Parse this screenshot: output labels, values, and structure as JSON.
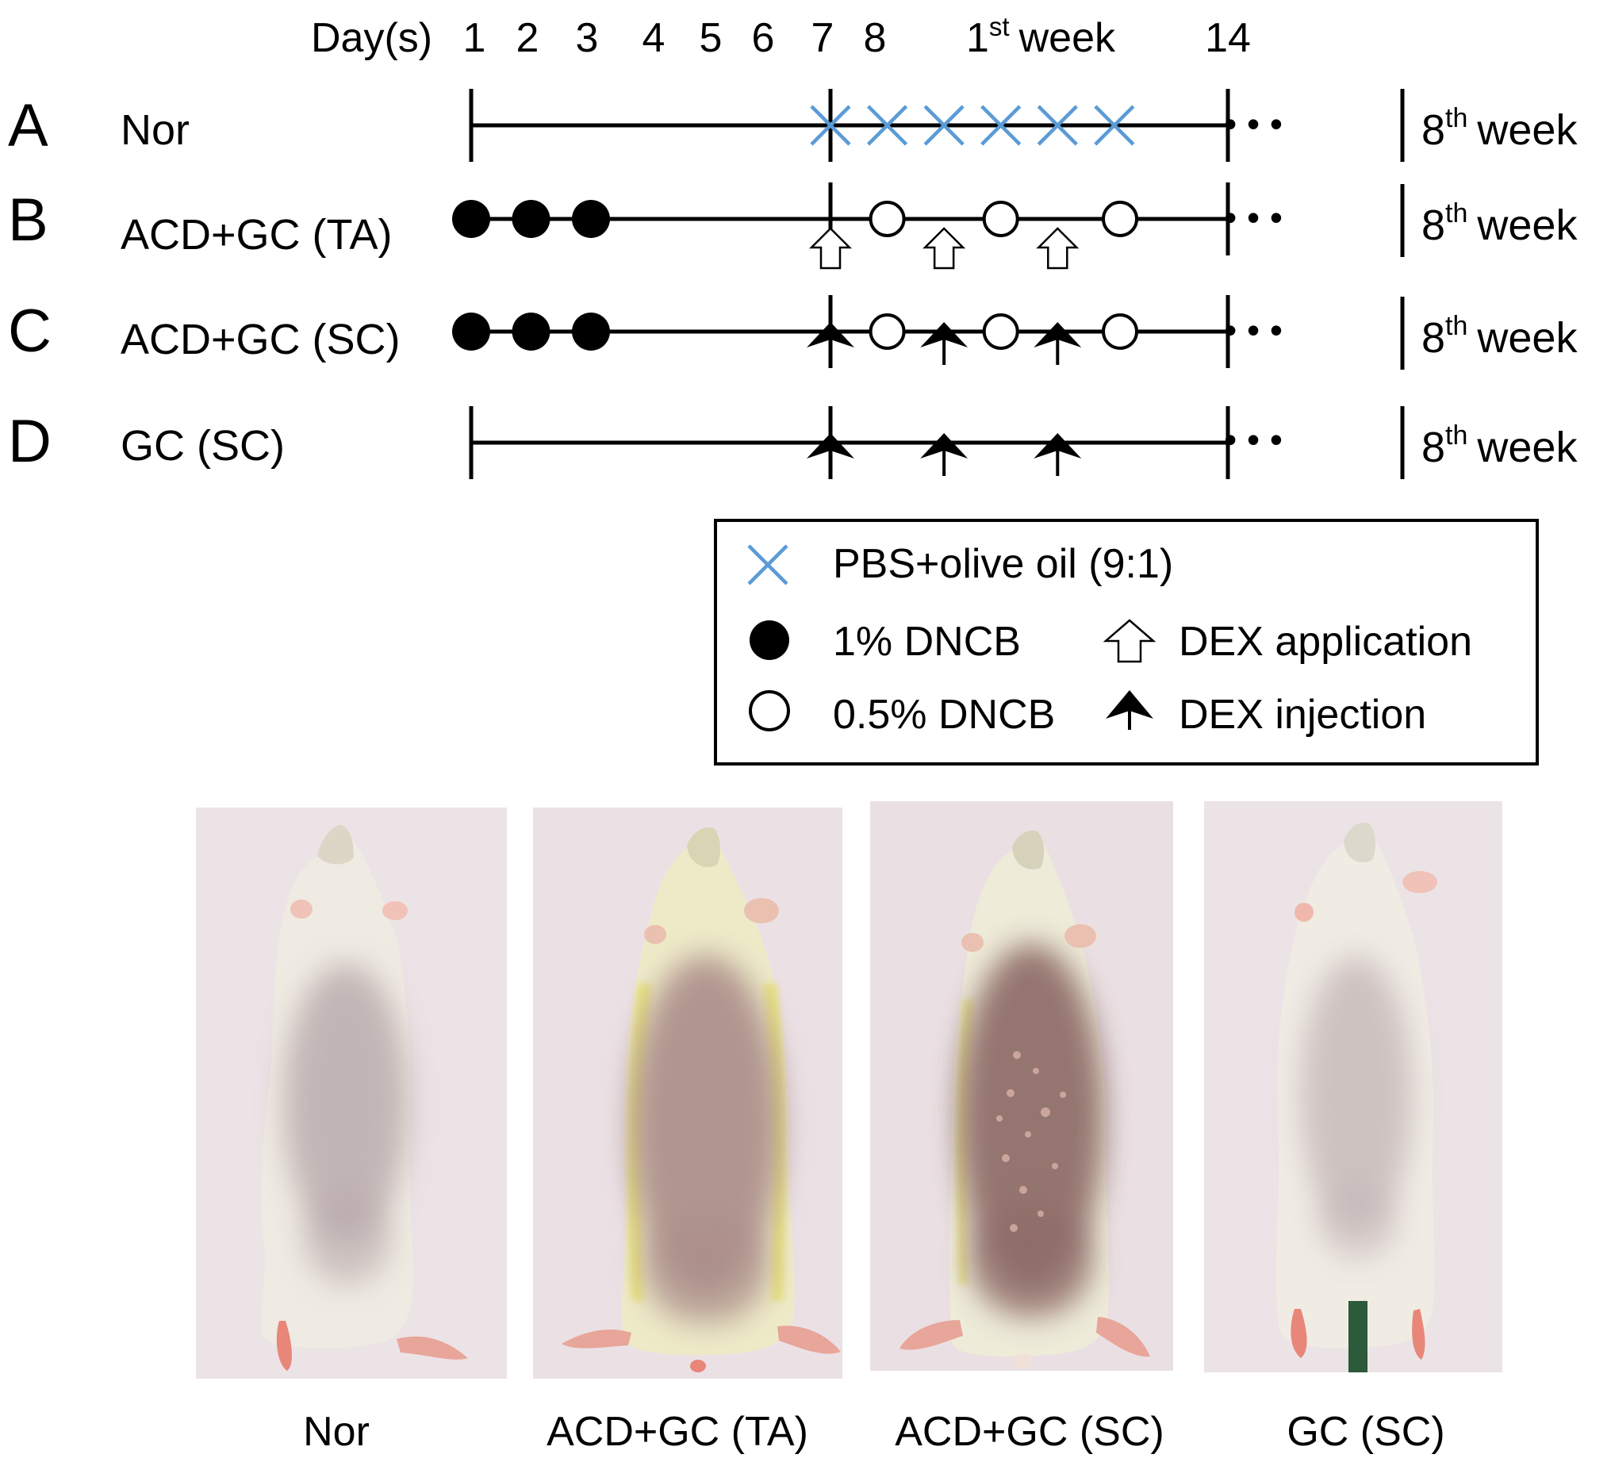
{
  "timeline": {
    "header_label": "Day(s)",
    "day_ticks": [
      {
        "label": "1",
        "day": 1
      },
      {
        "label": "2",
        "day": 2
      },
      {
        "label": "3",
        "day": 3
      },
      {
        "label": "4",
        "day": 4
      },
      {
        "label": "5",
        "day": 5
      },
      {
        "label": "6",
        "day": 6
      },
      {
        "label": "7",
        "day": 7
      },
      {
        "label": "8",
        "day": 8
      },
      {
        "label": "14",
        "day": 14
      }
    ],
    "week1_label": {
      "number": "1",
      "suffix": "st",
      "word": "week"
    },
    "ellipsis": "•  •  •",
    "end_label": {
      "number": "8",
      "suffix": "th",
      "word": "week"
    },
    "rows": [
      {
        "letter": "A",
        "name": "Nor",
        "markers": [
          {
            "type": "pbs-cross",
            "day": 7
          },
          {
            "type": "pbs-cross",
            "day": 8
          },
          {
            "type": "pbs-cross",
            "day": 9
          },
          {
            "type": "pbs-cross",
            "day": 10
          },
          {
            "type": "pbs-cross",
            "day": 11
          },
          {
            "type": "pbs-cross",
            "day": 12
          }
        ]
      },
      {
        "letter": "B",
        "name": "ACD+GC (TA)",
        "markers": [
          {
            "type": "filled-circle",
            "day": 1
          },
          {
            "type": "filled-circle",
            "day": 2
          },
          {
            "type": "filled-circle",
            "day": 3
          },
          {
            "type": "open-circle",
            "day": 8
          },
          {
            "type": "open-circle",
            "day": 10
          },
          {
            "type": "open-circle",
            "day": 12.1
          },
          {
            "type": "open-arrow",
            "day": 7
          },
          {
            "type": "open-arrow",
            "day": 9
          },
          {
            "type": "open-arrow",
            "day": 11
          }
        ]
      },
      {
        "letter": "C",
        "name": "ACD+GC (SC)",
        "markers": [
          {
            "type": "filled-circle",
            "day": 1
          },
          {
            "type": "filled-circle",
            "day": 2
          },
          {
            "type": "filled-circle",
            "day": 3
          },
          {
            "type": "open-circle",
            "day": 8
          },
          {
            "type": "open-circle",
            "day": 10
          },
          {
            "type": "open-circle",
            "day": 12.1
          },
          {
            "type": "solid-arrow",
            "day": 7
          },
          {
            "type": "solid-arrow",
            "day": 9
          },
          {
            "type": "solid-arrow",
            "day": 11
          }
        ]
      },
      {
        "letter": "D",
        "name": "GC (SC)",
        "markers": [
          {
            "type": "solid-arrow",
            "day": 7
          },
          {
            "type": "solid-arrow",
            "day": 9
          },
          {
            "type": "solid-arrow",
            "day": 11
          }
        ]
      }
    ]
  },
  "legend": {
    "pbs": "PBS+olive oil (9:1)",
    "dncb_1": "1% DNCB",
    "dncb_05": "0.5% DNCB",
    "dex_application": "DEX application",
    "dex_injection": "DEX injection"
  },
  "photos": [
    {
      "caption": "Nor"
    },
    {
      "caption": "ACD+GC (TA)"
    },
    {
      "caption": "ACD+GC (SC)"
    },
    {
      "caption": "GC (SC)"
    }
  ],
  "colors": {
    "cross": "#5b9bd5",
    "ink": "#000000",
    "photo_bg": "#ece3e6",
    "fur": "#f0ece2",
    "lesion_mild": "#b9a5a7",
    "lesion_severe": "#8d6a66",
    "yellow_stain": "#e6e07a",
    "paw": "#e8867a",
    "tube": "#2c5a3a"
  }
}
